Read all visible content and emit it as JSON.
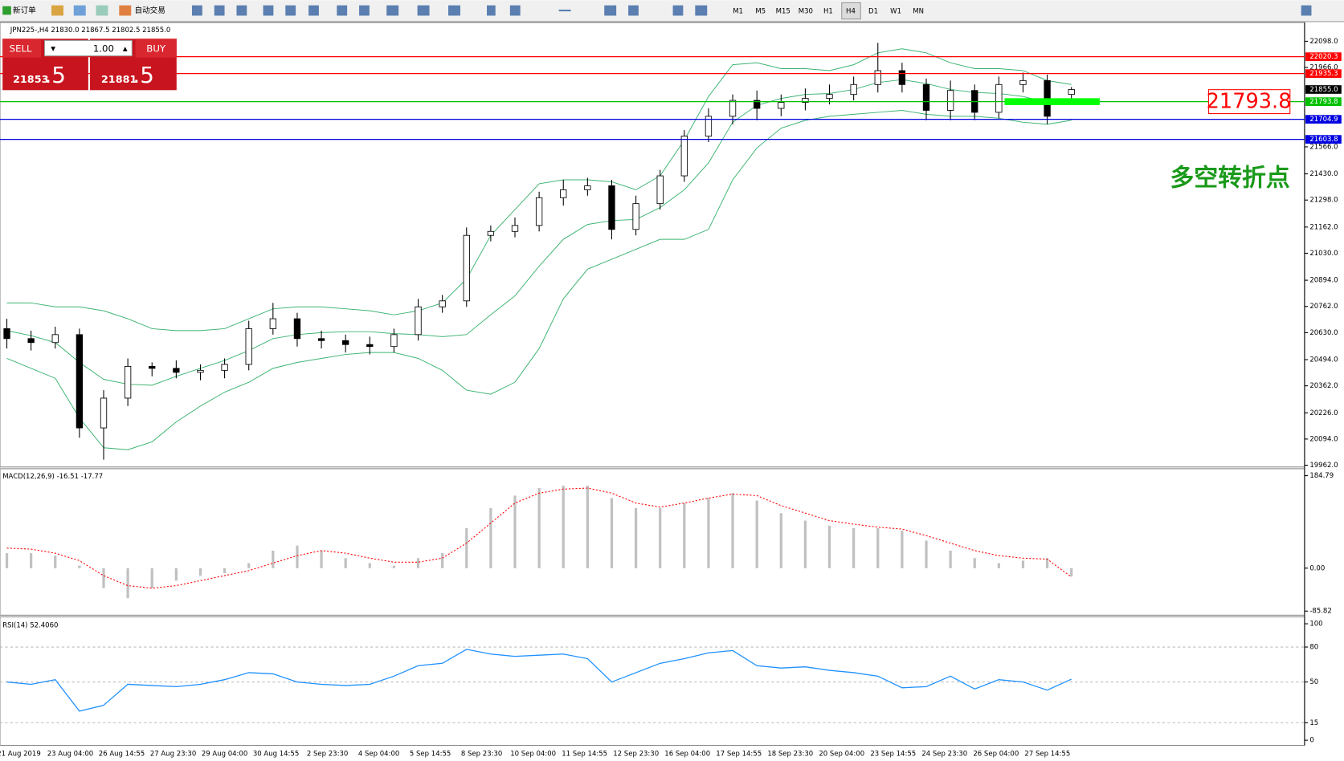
{
  "toolbar": {
    "new_order": "新订单",
    "auto_trading": "自动交易",
    "timeframes": [
      "M1",
      "M5",
      "M15",
      "M30",
      "H1",
      "H4",
      "D1",
      "W1",
      "MN"
    ]
  },
  "order_panel": {
    "sell": "SELL",
    "buy": "BUY",
    "lots": "1.00",
    "sell_price": "21853",
    "sell_pips": ".5",
    "buy_price": "21881",
    "buy_pips": ".5"
  },
  "time_labels": [
    "21 Aug 2019",
    "23 Aug 04:00",
    "26 Aug 14:55",
    "27 Aug 23:30",
    "29 Aug 04:00",
    "30 Aug 14:55",
    "2 Sep 23:30",
    "4 Sep 04:00",
    "5 Sep 14:55",
    "8 Sep 23:30",
    "10 Sep 04:00",
    "11 Sep 14:55",
    "12 Sep 23:30",
    "16 Sep 04:00",
    "17 Sep 14:55",
    "18 Sep 23:30",
    "20 Sep 04:00",
    "23 Sep 14:55",
    "24 Sep 23:30",
    "26 Sep 04:00",
    "27 Sep 14:55"
  ],
  "chart_data": [
    {
      "type": "candlestick",
      "title": "JPN225-,H4  21830.0 21867.5 21802.5 21855.0",
      "annotation": "多空转折点",
      "open": [
        20650,
        20600,
        20580,
        20620,
        20150,
        20300,
        20460,
        20450,
        20430,
        20440,
        20470,
        20650,
        20700,
        20600,
        20590,
        20570,
        20560,
        20620,
        20760,
        20790,
        21120,
        21140,
        21170,
        21310,
        21350,
        21370,
        21150,
        21280,
        21420,
        21620,
        21720,
        21800,
        21760,
        21790,
        21810,
        21830,
        21880,
        21950,
        21880,
        21750,
        21850,
        21740,
        21880,
        21900,
        21830
      ],
      "high": [
        20700,
        20640,
        20660,
        20650,
        20340,
        20500,
        20480,
        20490,
        20470,
        20500,
        20690,
        20780,
        20730,
        20640,
        20620,
        20610,
        20650,
        20800,
        20820,
        21160,
        21170,
        21210,
        21340,
        21400,
        21410,
        21400,
        21320,
        21450,
        21650,
        21760,
        21830,
        21850,
        21830,
        21860,
        21880,
        21920,
        22090,
        21990,
        21910,
        21900,
        21880,
        21920,
        21940,
        21930,
        21867.5
      ],
      "low": [
        20550,
        20540,
        20550,
        20100,
        19990,
        20260,
        20410,
        20400,
        20390,
        20400,
        20440,
        20620,
        20560,
        20550,
        20530,
        20520,
        20530,
        20590,
        20730,
        20760,
        21090,
        21110,
        21140,
        21270,
        21320,
        21100,
        21120,
        21250,
        21390,
        21590,
        21680,
        21700,
        21720,
        21750,
        21780,
        21800,
        21840,
        21840,
        21700,
        21700,
        21700,
        21710,
        21840,
        21680,
        21802.5
      ],
      "close": [
        20600,
        20580,
        20620,
        20150,
        20300,
        20460,
        20450,
        20430,
        20440,
        20470,
        20650,
        20700,
        20600,
        20590,
        20570,
        20560,
        20620,
        20760,
        20790,
        21120,
        21140,
        21170,
        21310,
        21350,
        21370,
        21150,
        21280,
        21420,
        21620,
        21720,
        21800,
        21760,
        21790,
        21810,
        21830,
        21880,
        21950,
        21880,
        21750,
        21850,
        21740,
        21880,
        21900,
        21720,
        21855
      ],
      "bollinger": {
        "color": "#3cb371",
        "upper": [
          20780,
          20780,
          20760,
          20760,
          20740,
          20700,
          20650,
          20640,
          20640,
          20650,
          20700,
          20750,
          20760,
          20760,
          20750,
          20740,
          20720,
          20740,
          20780,
          20900,
          21120,
          21250,
          21380,
          21400,
          21400,
          21390,
          21350,
          21420,
          21600,
          21820,
          21980,
          21990,
          21960,
          21960,
          21950,
          21980,
          22040,
          22060,
          22040,
          21990,
          21960,
          21960,
          21950,
          21900,
          21880
        ],
        "middle": [
          20640,
          20615,
          20580,
          20480,
          20395,
          20370,
          20365,
          20410,
          20450,
          20490,
          20540,
          20600,
          20620,
          20630,
          20635,
          20635,
          20625,
          20620,
          20610,
          20620,
          20720,
          20815,
          20965,
          21100,
          21175,
          21195,
          21200,
          21260,
          21350,
          21485,
          21690,
          21775,
          21810,
          21830,
          21835,
          21855,
          21890,
          21905,
          21885,
          21855,
          21840,
          21835,
          21820,
          21790,
          21790
        ],
        "lower": [
          20500,
          20450,
          20400,
          20200,
          20050,
          20040,
          20080,
          20180,
          20260,
          20330,
          20380,
          20450,
          20480,
          20500,
          20520,
          20530,
          20530,
          20500,
          20440,
          20340,
          20320,
          20380,
          20550,
          20800,
          20950,
          21000,
          21050,
          21100,
          21100,
          21150,
          21400,
          21560,
          21660,
          21700,
          21720,
          21730,
          21740,
          21750,
          21730,
          21720,
          21720,
          21710,
          21690,
          21680,
          21700
        ]
      },
      "levels": [
        {
          "value": 22020.3,
          "label": "22020.3",
          "color": "#ff0000"
        },
        {
          "value": 21935.3,
          "label": "21935.3",
          "color": "#ff0000"
        },
        {
          "value": 21855,
          "label": "21855.0",
          "color": "#000000",
          "line": false
        },
        {
          "value": 21793.8,
          "label": "21793.8",
          "color": "#00c000",
          "highlight": true
        },
        {
          "value": 21704.9,
          "label": "21704.9",
          "color": "#0000e0"
        },
        {
          "value": 21603.8,
          "label": "21603.8",
          "color": "#0000e0"
        }
      ],
      "ylim": [
        19953,
        22184
      ],
      "yticks": [
        {
          "value": 22098,
          "label": "22098.0"
        },
        {
          "value": 21966,
          "label": "21966.0"
        },
        {
          "value": 21566,
          "label": "21566.0"
        },
        {
          "value": 21430,
          "label": "21430.0"
        },
        {
          "value": 21298,
          "label": "21298.0"
        },
        {
          "value": 21162,
          "label": "21162.0"
        },
        {
          "value": 21030,
          "label": "21030.0"
        },
        {
          "value": 20894,
          "label": "20894.0"
        },
        {
          "value": 20762,
          "label": "20762.0"
        },
        {
          "value": 20630,
          "label": "20630.0"
        },
        {
          "value": 20494,
          "label": "20494.0"
        },
        {
          "value": 20362,
          "label": "20362.0"
        },
        {
          "value": 20226,
          "label": "20226.0"
        },
        {
          "value": 20094,
          "label": "20094.0"
        },
        {
          "value": 19962,
          "label": "19962.0"
        }
      ]
    },
    {
      "type": "macd",
      "title": "MACD(12,26,9) -16.51 -17.77",
      "histogram": [
        30,
        30,
        25,
        5,
        -40,
        -60,
        -40,
        -25,
        -15,
        -10,
        10,
        35,
        45,
        35,
        20,
        10,
        5,
        20,
        30,
        80,
        120,
        145,
        160,
        165,
        165,
        140,
        120,
        120,
        130,
        140,
        150,
        135,
        110,
        95,
        85,
        80,
        80,
        75,
        55,
        35,
        20,
        10,
        15,
        20,
        -16.51
      ],
      "signal": [
        40,
        38,
        30,
        15,
        -15,
        -35,
        -40,
        -35,
        -25,
        -15,
        -5,
        10,
        25,
        35,
        30,
        20,
        12,
        12,
        20,
        50,
        90,
        130,
        150,
        158,
        160,
        150,
        130,
        122,
        130,
        140,
        148,
        145,
        125,
        110,
        95,
        88,
        82,
        78,
        65,
        50,
        35,
        25,
        20,
        18,
        -17.77
      ],
      "hist_color": "#c0c0c0",
      "signal_color": "#ff0000",
      "ylim": [
        -94,
        197
      ],
      "yticks": [
        184.79,
        {
          "value": 0,
          "label": "0.00"
        },
        -85.82
      ]
    },
    {
      "type": "line",
      "title": "RSI(14) 52.4060",
      "values": [
        50,
        48,
        52,
        25,
        30,
        48,
        47,
        46,
        48,
        52,
        58,
        57,
        50,
        48,
        47,
        48,
        55,
        64,
        66,
        78,
        74,
        72,
        73,
        74,
        70,
        50,
        58,
        66,
        70,
        75,
        77,
        64,
        62,
        63,
        60,
        58,
        55,
        45,
        46,
        55,
        44,
        52,
        50,
        43,
        52.406
      ],
      "color": "#1e90ff",
      "ylim": [
        0,
        100
      ],
      "yticks": [
        100,
        80,
        50,
        15,
        0
      ]
    }
  ]
}
